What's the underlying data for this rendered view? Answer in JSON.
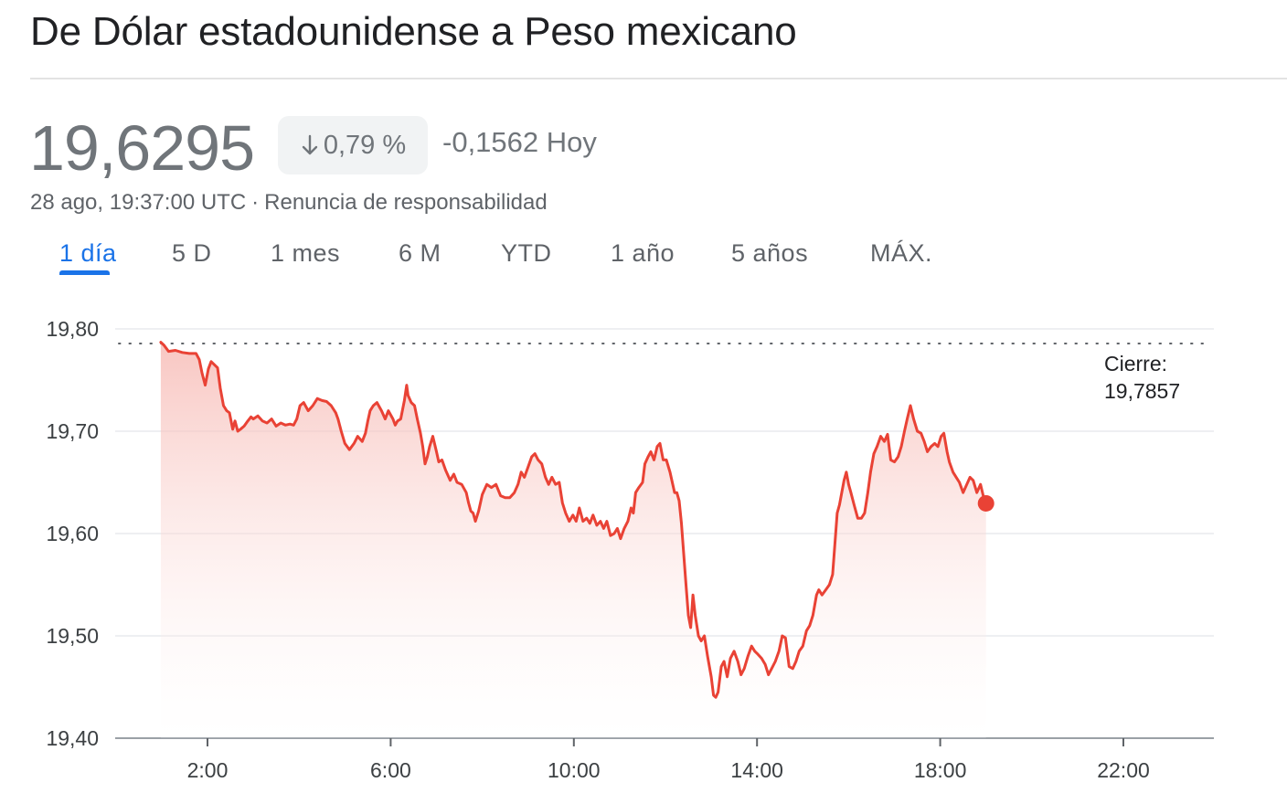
{
  "header": {
    "title": "De Dólar estadounidense a Peso mexicano"
  },
  "quote": {
    "price": "19,6295",
    "change_percent": "0,79 %",
    "change_direction": "down",
    "change_abs": "-0,1562 Hoy",
    "timestamp": "28 ago, 19:37:00 UTC",
    "separator": "·",
    "disclaimer": "Renuncia de responsabilidad"
  },
  "tabs": [
    {
      "label": "1 día",
      "active": true
    },
    {
      "label": "5 D",
      "active": false
    },
    {
      "label": "1 mes",
      "active": false
    },
    {
      "label": "6 M",
      "active": false
    },
    {
      "label": "YTD",
      "active": false
    },
    {
      "label": "1 año",
      "active": false
    },
    {
      "label": "5 años",
      "active": false
    },
    {
      "label": "MÁX.",
      "active": false
    }
  ],
  "colors": {
    "line": "#e94235",
    "accent": "#1a73e8",
    "muted": "#70757a"
  },
  "chart_data": {
    "type": "line",
    "title": "",
    "xlabel": "",
    "ylabel": "",
    "ylim": [
      19.4,
      19.8
    ],
    "xlim": [
      1.0,
      22.0
    ],
    "x_ticks": [
      {
        "value": 2,
        "label": "2:00"
      },
      {
        "value": 6,
        "label": "6:00"
      },
      {
        "value": 10,
        "label": "10:00"
      },
      {
        "value": 14,
        "label": "14:00"
      },
      {
        "value": 18,
        "label": "18:00"
      },
      {
        "value": 22,
        "label": "22:00"
      }
    ],
    "y_ticks": [
      {
        "value": 19.8,
        "label": "19,80"
      },
      {
        "value": 19.7,
        "label": "19,70"
      },
      {
        "value": 19.6,
        "label": "19,60"
      },
      {
        "value": 19.5,
        "label": "19,50"
      },
      {
        "value": 19.4,
        "label": "19,40"
      }
    ],
    "grid": true,
    "previous_close": {
      "value": 19.7857,
      "label_title": "Cierre:",
      "label_value": "19,7857"
    },
    "series": [
      {
        "points": [
          [
            0.98,
            19.787
          ],
          [
            1.05,
            19.784
          ],
          [
            1.15,
            19.778
          ],
          [
            1.3,
            19.779
          ],
          [
            1.45,
            19.777
          ],
          [
            1.6,
            19.776
          ],
          [
            1.75,
            19.776
          ],
          [
            1.82,
            19.77
          ],
          [
            1.88,
            19.757
          ],
          [
            1.95,
            19.745
          ],
          [
            2.02,
            19.761
          ],
          [
            2.08,
            19.768
          ],
          [
            2.15,
            19.765
          ],
          [
            2.22,
            19.762
          ],
          [
            2.28,
            19.742
          ],
          [
            2.35,
            19.725
          ],
          [
            2.42,
            19.72
          ],
          [
            2.48,
            19.718
          ],
          [
            2.55,
            19.702
          ],
          [
            2.6,
            19.71
          ],
          [
            2.66,
            19.7
          ],
          [
            2.72,
            19.702
          ],
          [
            2.8,
            19.705
          ],
          [
            2.88,
            19.71
          ],
          [
            2.95,
            19.714
          ],
          [
            3.0,
            19.712
          ],
          [
            3.1,
            19.715
          ],
          [
            3.2,
            19.71
          ],
          [
            3.3,
            19.708
          ],
          [
            3.4,
            19.712
          ],
          [
            3.5,
            19.705
          ],
          [
            3.6,
            19.708
          ],
          [
            3.7,
            19.706
          ],
          [
            3.8,
            19.707
          ],
          [
            3.88,
            19.706
          ],
          [
            3.95,
            19.712
          ],
          [
            4.02,
            19.725
          ],
          [
            4.1,
            19.728
          ],
          [
            4.2,
            19.72
          ],
          [
            4.3,
            19.725
          ],
          [
            4.4,
            19.732
          ],
          [
            4.5,
            19.73
          ],
          [
            4.6,
            19.729
          ],
          [
            4.7,
            19.725
          ],
          [
            4.8,
            19.718
          ],
          [
            4.85,
            19.712
          ],
          [
            4.92,
            19.7
          ],
          [
            5.0,
            19.688
          ],
          [
            5.1,
            19.682
          ],
          [
            5.2,
            19.688
          ],
          [
            5.28,
            19.695
          ],
          [
            5.38,
            19.69
          ],
          [
            5.45,
            19.698
          ],
          [
            5.5,
            19.71
          ],
          [
            5.55,
            19.72
          ],
          [
            5.62,
            19.725
          ],
          [
            5.7,
            19.728
          ],
          [
            5.8,
            19.72
          ],
          [
            5.88,
            19.712
          ],
          [
            5.95,
            19.72
          ],
          [
            6.05,
            19.712
          ],
          [
            6.1,
            19.706
          ],
          [
            6.15,
            19.71
          ],
          [
            6.22,
            19.712
          ],
          [
            6.3,
            19.73
          ],
          [
            6.35,
            19.745
          ],
          [
            6.38,
            19.735
          ],
          [
            6.45,
            19.728
          ],
          [
            6.52,
            19.725
          ],
          [
            6.58,
            19.712
          ],
          [
            6.65,
            19.698
          ],
          [
            6.7,
            19.685
          ],
          [
            6.75,
            19.668
          ],
          [
            6.8,
            19.675
          ],
          [
            6.85,
            19.685
          ],
          [
            6.92,
            19.695
          ],
          [
            7.0,
            19.68
          ],
          [
            7.05,
            19.67
          ],
          [
            7.12,
            19.672
          ],
          [
            7.2,
            19.662
          ],
          [
            7.3,
            19.652
          ],
          [
            7.38,
            19.658
          ],
          [
            7.45,
            19.65
          ],
          [
            7.55,
            19.648
          ],
          [
            7.65,
            19.64
          ],
          [
            7.7,
            19.63
          ],
          [
            7.75,
            19.622
          ],
          [
            7.8,
            19.62
          ],
          [
            7.85,
            19.612
          ],
          [
            7.92,
            19.622
          ],
          [
            8.0,
            19.638
          ],
          [
            8.1,
            19.648
          ],
          [
            8.2,
            19.645
          ],
          [
            8.3,
            19.648
          ],
          [
            8.4,
            19.637
          ],
          [
            8.5,
            19.635
          ],
          [
            8.6,
            19.635
          ],
          [
            8.7,
            19.64
          ],
          [
            8.78,
            19.648
          ],
          [
            8.85,
            19.66
          ],
          [
            8.92,
            19.655
          ],
          [
            9.0,
            19.665
          ],
          [
            9.08,
            19.675
          ],
          [
            9.15,
            19.678
          ],
          [
            9.22,
            19.672
          ],
          [
            9.3,
            19.668
          ],
          [
            9.38,
            19.655
          ],
          [
            9.45,
            19.648
          ],
          [
            9.52,
            19.655
          ],
          [
            9.6,
            19.648
          ],
          [
            9.68,
            19.65
          ],
          [
            9.75,
            19.63
          ],
          [
            9.82,
            19.62
          ],
          [
            9.9,
            19.612
          ],
          [
            9.98,
            19.618
          ],
          [
            10.05,
            19.612
          ],
          [
            10.12,
            19.625
          ],
          [
            10.2,
            19.612
          ],
          [
            10.28,
            19.615
          ],
          [
            10.35,
            19.61
          ],
          [
            10.42,
            19.618
          ],
          [
            10.5,
            19.608
          ],
          [
            10.58,
            19.612
          ],
          [
            10.65,
            19.605
          ],
          [
            10.72,
            19.612
          ],
          [
            10.8,
            19.598
          ],
          [
            10.88,
            19.6
          ],
          [
            10.95,
            19.605
          ],
          [
            11.02,
            19.595
          ],
          [
            11.1,
            19.605
          ],
          [
            11.18,
            19.612
          ],
          [
            11.25,
            19.625
          ],
          [
            11.3,
            19.62
          ],
          [
            11.35,
            19.64
          ],
          [
            11.42,
            19.645
          ],
          [
            11.5,
            19.65
          ],
          [
            11.55,
            19.668
          ],
          [
            11.62,
            19.675
          ],
          [
            11.68,
            19.68
          ],
          [
            11.75,
            19.672
          ],
          [
            11.82,
            19.685
          ],
          [
            11.88,
            19.688
          ],
          [
            11.95,
            19.672
          ],
          [
            12.02,
            19.672
          ],
          [
            12.1,
            19.66
          ],
          [
            12.15,
            19.65
          ],
          [
            12.2,
            19.64
          ],
          [
            12.25,
            19.64
          ],
          [
            12.3,
            19.632
          ],
          [
            12.35,
            19.61
          ],
          [
            12.4,
            19.58
          ],
          [
            12.45,
            19.55
          ],
          [
            12.5,
            19.52
          ],
          [
            12.55,
            19.508
          ],
          [
            12.6,
            19.54
          ],
          [
            12.65,
            19.52
          ],
          [
            12.72,
            19.5
          ],
          [
            12.78,
            19.495
          ],
          [
            12.85,
            19.5
          ],
          [
            12.92,
            19.48
          ],
          [
            13.0,
            19.46
          ],
          [
            13.05,
            19.442
          ],
          [
            13.1,
            19.44
          ],
          [
            13.15,
            19.445
          ],
          [
            13.22,
            19.47
          ],
          [
            13.28,
            19.475
          ],
          [
            13.35,
            19.46
          ],
          [
            13.42,
            19.478
          ],
          [
            13.5,
            19.485
          ],
          [
            13.58,
            19.475
          ],
          [
            13.65,
            19.462
          ],
          [
            13.72,
            19.468
          ],
          [
            13.8,
            19.48
          ],
          [
            13.88,
            19.49
          ],
          [
            13.95,
            19.485
          ],
          [
            14.02,
            19.482
          ],
          [
            14.1,
            19.478
          ],
          [
            14.18,
            19.472
          ],
          [
            14.25,
            19.462
          ],
          [
            14.32,
            19.468
          ],
          [
            14.4,
            19.475
          ],
          [
            14.48,
            19.485
          ],
          [
            14.55,
            19.5
          ],
          [
            14.62,
            19.498
          ],
          [
            14.7,
            19.47
          ],
          [
            14.78,
            19.468
          ],
          [
            14.85,
            19.475
          ],
          [
            14.92,
            19.485
          ],
          [
            15.0,
            19.49
          ],
          [
            15.08,
            19.505
          ],
          [
            15.15,
            19.51
          ],
          [
            15.22,
            19.52
          ],
          [
            15.3,
            19.54
          ],
          [
            15.35,
            19.545
          ],
          [
            15.42,
            19.54
          ],
          [
            15.5,
            19.545
          ],
          [
            15.58,
            19.55
          ],
          [
            15.65,
            19.56
          ],
          [
            15.7,
            19.59
          ],
          [
            15.75,
            19.62
          ],
          [
            15.8,
            19.628
          ],
          [
            15.85,
            19.64
          ],
          [
            15.9,
            19.652
          ],
          [
            15.95,
            19.66
          ],
          [
            16.0,
            19.648
          ],
          [
            16.05,
            19.64
          ],
          [
            16.12,
            19.628
          ],
          [
            16.2,
            19.615
          ],
          [
            16.28,
            19.615
          ],
          [
            16.35,
            19.62
          ],
          [
            16.42,
            19.64
          ],
          [
            16.48,
            19.66
          ],
          [
            16.55,
            19.678
          ],
          [
            16.62,
            19.685
          ],
          [
            16.7,
            19.695
          ],
          [
            16.78,
            19.69
          ],
          [
            16.85,
            19.697
          ],
          [
            16.92,
            19.672
          ],
          [
            17.0,
            19.67
          ],
          [
            17.08,
            19.675
          ],
          [
            17.15,
            19.685
          ],
          [
            17.22,
            19.7
          ],
          [
            17.28,
            19.712
          ],
          [
            17.35,
            19.725
          ],
          [
            17.42,
            19.712
          ],
          [
            17.5,
            19.7
          ],
          [
            17.58,
            19.698
          ],
          [
            17.65,
            19.69
          ],
          [
            17.72,
            19.68
          ],
          [
            17.8,
            19.685
          ],
          [
            17.88,
            19.688
          ],
          [
            17.95,
            19.685
          ],
          [
            18.02,
            19.695
          ],
          [
            18.08,
            19.698
          ],
          [
            18.15,
            19.68
          ],
          [
            18.2,
            19.67
          ],
          [
            18.28,
            19.66
          ],
          [
            18.35,
            19.655
          ],
          [
            18.42,
            19.65
          ],
          [
            18.5,
            19.64
          ],
          [
            18.58,
            19.648
          ],
          [
            18.65,
            19.655
          ],
          [
            18.72,
            19.652
          ],
          [
            18.8,
            19.64
          ],
          [
            18.88,
            19.648
          ],
          [
            18.95,
            19.635
          ],
          [
            19.0,
            19.632
          ]
        ]
      }
    ],
    "last_point": {
      "x": 19.0,
      "y": 19.6295
    }
  }
}
